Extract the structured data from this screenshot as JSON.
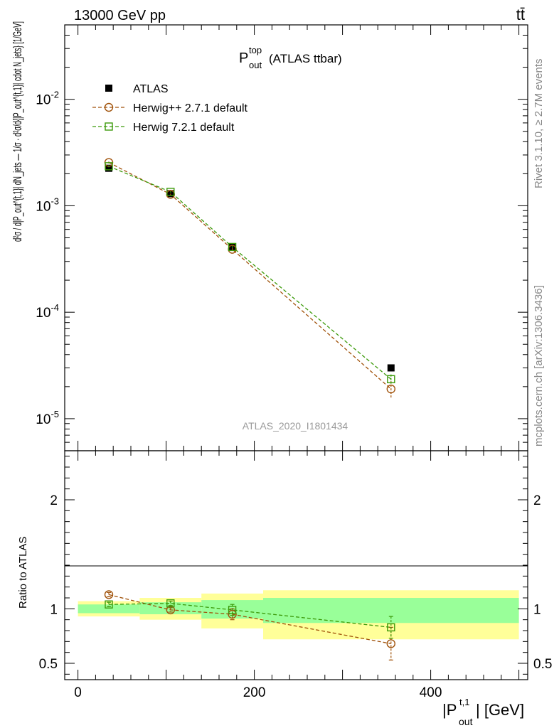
{
  "header": {
    "energy_label": "13000 GeV pp",
    "process_label": "tt̄"
  },
  "title": {
    "main": "P",
    "sup": "top",
    "sub": "out",
    "suffix": "(ATLAS ttbar)"
  },
  "y_axis_label": "d²σ / d|P_out^{t,1}| dN_jets — 1/σ · d²σ/d{|P_out^{t,1}| cdot N_jets} [1/GeV]",
  "legend": [
    {
      "label": "ATLAS",
      "color": "#000000",
      "marker": "filled-square"
    },
    {
      "label": "Herwig++ 2.7.1 default",
      "color": "#a0520a",
      "marker": "open-circle"
    },
    {
      "label": "Herwig 7.2.1 default",
      "color": "#3c9a0a",
      "marker": "open-square"
    }
  ],
  "side_labels": {
    "rivet": "Rivet 3.1.10, ≥ 2.7M events",
    "mcplots": "mcplots.cern.ch [arXiv:1306.3436]"
  },
  "watermark": "ATLAS_2020_I1801434",
  "ratio_ylabel": "Ratio to ATLAS",
  "x_axis_label": {
    "main": "|P",
    "sup": "t,1",
    "sub": "out",
    "suffix": "| [GeV]"
  },
  "chart_data": {
    "type": "scatter",
    "xlim": [
      -15,
      510
    ],
    "main_panel": {
      "yscale": "log",
      "ylim": [
        5e-06,
        0.05
      ],
      "ytick_labels": [
        "10^-5",
        "10^-4",
        "10^-3",
        "10^-2"
      ],
      "series": [
        {
          "name": "ATLAS",
          "x": [
            35,
            105,
            175,
            355
          ],
          "y": [
            0.00225,
            0.0013,
            0.00041,
            3e-05
          ],
          "xerr": [
            35,
            35,
            35,
            145
          ]
        },
        {
          "name": "Herwig++ 2.7.1 default",
          "x": [
            35,
            105,
            175,
            355
          ],
          "y": [
            0.00255,
            0.00128,
            0.00039,
            1.9e-05
          ],
          "yerr": [
            5e-05,
            2e-05,
            1e-05,
            3.5e-06
          ]
        },
        {
          "name": "Herwig 7.2.1 default",
          "x": [
            35,
            105,
            175,
            355
          ],
          "y": [
            0.00235,
            0.00135,
            0.00041,
            2.35e-05
          ],
          "yerr": [
            5e-05,
            2e-05,
            1e-05,
            2.5e-06
          ]
        }
      ]
    },
    "ratio_panel": {
      "ylim": [
        0.35,
        2.45
      ],
      "ytick_labels": [
        "0.5",
        "1",
        "2"
      ],
      "bands": [
        {
          "xlo": 0,
          "xhi": 70,
          "stat_lo": 0.96,
          "stat_hi": 1.04,
          "tot_lo": 0.93,
          "tot_hi": 1.07
        },
        {
          "xlo": 70,
          "xhi": 140,
          "stat_lo": 0.95,
          "stat_hi": 1.06,
          "tot_lo": 0.9,
          "tot_hi": 1.1
        },
        {
          "xlo": 140,
          "xhi": 210,
          "stat_lo": 0.91,
          "stat_hi": 1.08,
          "tot_lo": 0.82,
          "tot_hi": 1.14
        },
        {
          "xlo": 210,
          "xhi": 500,
          "stat_lo": 0.87,
          "stat_hi": 1.1,
          "tot_lo": 0.72,
          "tot_hi": 1.17
        }
      ],
      "series": [
        {
          "name": "Herwig++ 2.7.1 default",
          "x": [
            35,
            105,
            175,
            355
          ],
          "y": [
            1.13,
            0.99,
            0.95,
            0.68
          ],
          "yerr": [
            0.02,
            0.02,
            0.05,
            0.15
          ]
        },
        {
          "name": "Herwig 7.2.1 default",
          "x": [
            35,
            105,
            175,
            355
          ],
          "y": [
            1.04,
            1.05,
            0.99,
            0.83
          ],
          "yerr": [
            0.02,
            0.02,
            0.05,
            0.1
          ]
        }
      ]
    },
    "xtick_labels": [
      "0",
      "200",
      "400"
    ],
    "xticks": [
      0,
      200,
      400
    ]
  }
}
